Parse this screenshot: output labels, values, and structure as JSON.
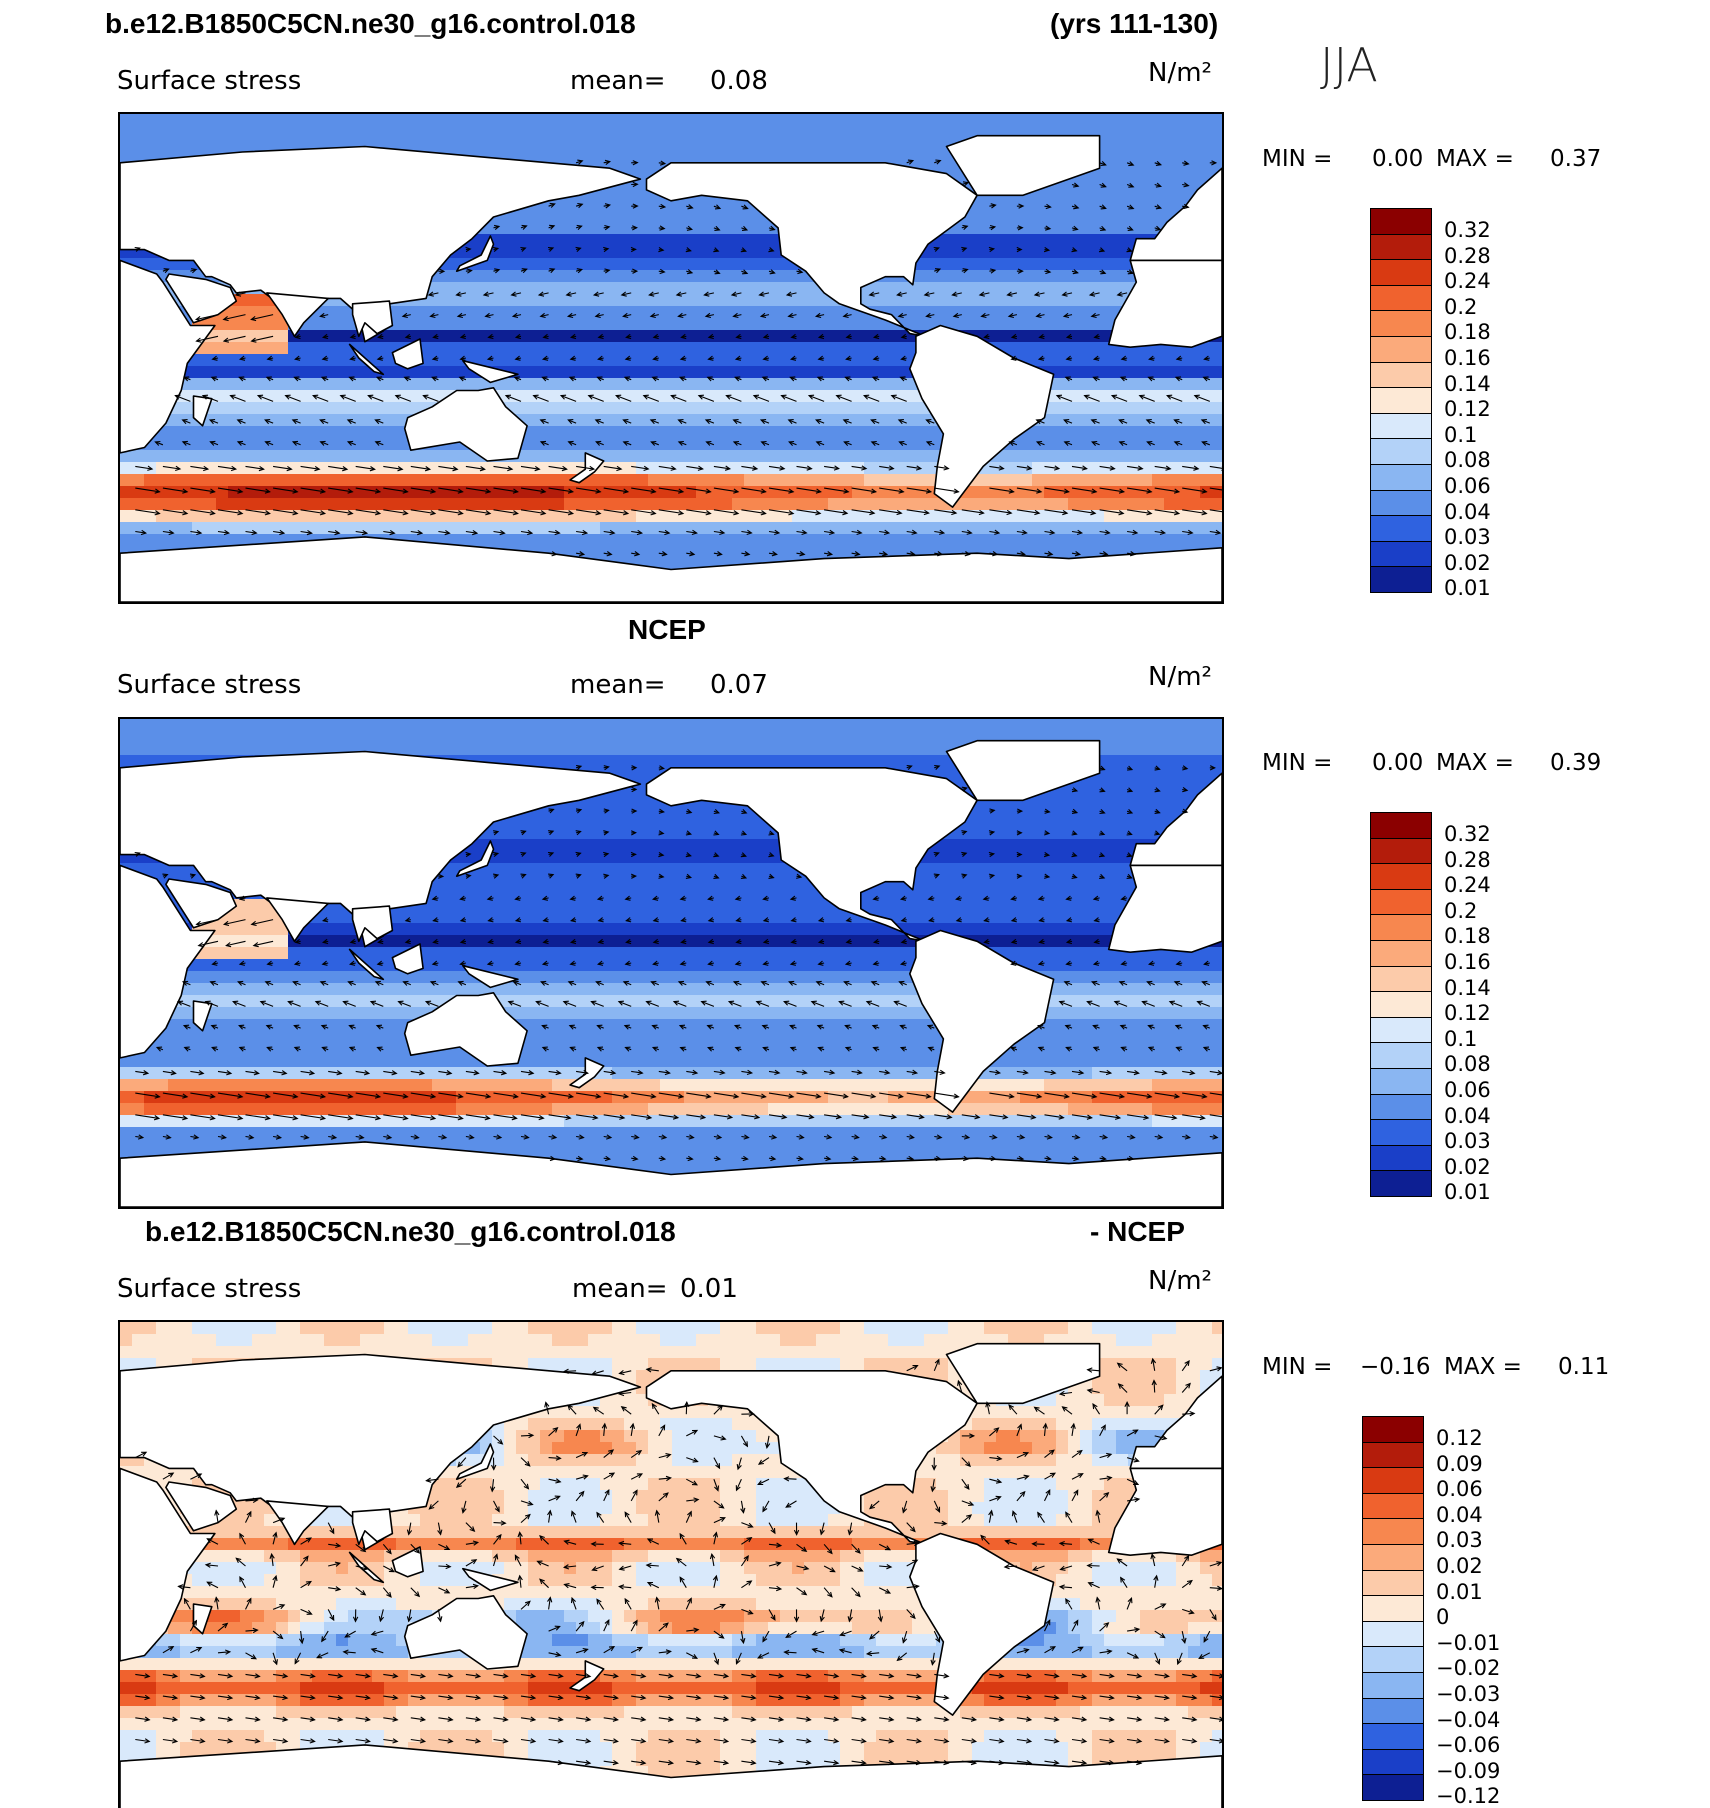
{
  "header": {
    "case": "b.e12.B1850C5CN.ne30_g16.control.018",
    "years": "(yrs 111-130)",
    "season": "JJA"
  },
  "colors": {
    "land": "#ffffff",
    "coast": "#000000"
  },
  "chart_data": [
    {
      "type": "heatmap",
      "panel_title": "",
      "label": "Surface stress",
      "mean_label": "mean=",
      "mean_value": "0.08",
      "units": "N/m²",
      "min_label": "MIN =",
      "min_value": "0.00",
      "max_label": "MAX =",
      "max_value": "0.37",
      "colorbar": [
        "0.32",
        "0.28",
        "0.24",
        "0.2",
        "0.18",
        "0.16",
        "0.14",
        "0.12",
        "0.1",
        "0.08",
        "0.06",
        "0.04",
        "0.03",
        "0.02",
        "0.01"
      ],
      "colorbar_colors": [
        "#8b0000",
        "#b31c0b",
        "#d93a12",
        "#f0622e",
        "#f7874f",
        "#fbaa7b",
        "#fccbaa",
        "#fde9d6",
        "#d9e9fb",
        "#b3d2f8",
        "#8ab6f2",
        "#5b8fe8",
        "#2f62e0",
        "#1a3fc8",
        "#0d1f93"
      ]
    },
    {
      "type": "heatmap",
      "panel_title": "NCEP",
      "label": "Surface stress",
      "mean_label": "mean=",
      "mean_value": "0.07",
      "units": "N/m²",
      "min_label": "MIN =",
      "min_value": "0.00",
      "max_label": "MAX =",
      "max_value": "0.39",
      "colorbar": [
        "0.32",
        "0.28",
        "0.24",
        "0.2",
        "0.18",
        "0.16",
        "0.14",
        "0.12",
        "0.1",
        "0.08",
        "0.06",
        "0.04",
        "0.03",
        "0.02",
        "0.01"
      ],
      "colorbar_colors": [
        "#8b0000",
        "#b31c0b",
        "#d93a12",
        "#f0622e",
        "#f7874f",
        "#fbaa7b",
        "#fccbaa",
        "#fde9d6",
        "#d9e9fb",
        "#b3d2f8",
        "#8ab6f2",
        "#5b8fe8",
        "#2f62e0",
        "#1a3fc8",
        "#0d1f93"
      ]
    },
    {
      "type": "heatmap",
      "panel_title": "b.e12.B1850C5CN.ne30_g16.control.018",
      "panel_title_right": "- NCEP",
      "label": "Surface stress",
      "mean_label": "mean=",
      "mean_value": "0.01",
      "units": "N/m²",
      "min_label": "MIN =",
      "min_value": "−0.16",
      "max_label": "MAX =",
      "max_value": "0.11",
      "colorbar": [
        "0.12",
        "0.09",
        "0.06",
        "0.04",
        "0.03",
        "0.02",
        "0.01",
        "0",
        "−0.01",
        "−0.02",
        "−0.03",
        "−0.04",
        "−0.06",
        "−0.09",
        "−0.12"
      ],
      "colorbar_colors": [
        "#8b0000",
        "#b31c0b",
        "#d93a12",
        "#f0622e",
        "#f7874f",
        "#fbaa7b",
        "#fccbaa",
        "#fde9d6",
        "#d9e9fb",
        "#b3d2f8",
        "#8ab6f2",
        "#5b8fe8",
        "#2f62e0",
        "#1a3fc8",
        "#0d1f93"
      ]
    }
  ]
}
